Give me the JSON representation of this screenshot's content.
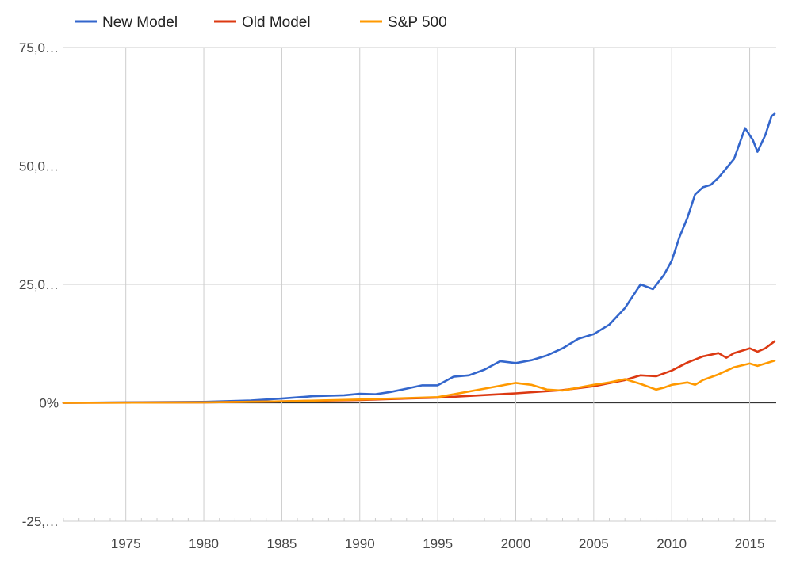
{
  "chart_data": {
    "type": "line",
    "title": "",
    "xlabel": "",
    "ylabel": "",
    "xlim": [
      1971,
      2016.7
    ],
    "ylim": [
      -25000,
      75000
    ],
    "grid": true,
    "legend_position": "top",
    "x_ticks": [
      1975,
      1980,
      1985,
      1990,
      1995,
      2000,
      2005,
      2010,
      2015
    ],
    "x_tick_labels": [
      "1975",
      "1980",
      "1985",
      "1990",
      "1995",
      "2000",
      "2005",
      "2010",
      "2015"
    ],
    "y_ticks": [
      75000,
      50000,
      25000,
      0,
      -25000
    ],
    "y_tick_labels": [
      "75,0…",
      "50,0…",
      "25,0…",
      "0%",
      "-25,…"
    ],
    "series": [
      {
        "name": "New Model",
        "color": "#3366cc",
        "points": [
          [
            1971,
            0
          ],
          [
            1975,
            100
          ],
          [
            1980,
            200
          ],
          [
            1983,
            500
          ],
          [
            1985,
            900
          ],
          [
            1987,
            1400
          ],
          [
            1989,
            1600
          ],
          [
            1990,
            1900
          ],
          [
            1991,
            1800
          ],
          [
            1992,
            2300
          ],
          [
            1993,
            3000
          ],
          [
            1994,
            3700
          ],
          [
            1995,
            3700
          ],
          [
            1996,
            5500
          ],
          [
            1997,
            5800
          ],
          [
            1998,
            7000
          ],
          [
            1999,
            8800
          ],
          [
            2000,
            8400
          ],
          [
            2001,
            9000
          ],
          [
            2002,
            10000
          ],
          [
            2003,
            11500
          ],
          [
            2004,
            13500
          ],
          [
            2005,
            14500
          ],
          [
            2006,
            16500
          ],
          [
            2007,
            20000
          ],
          [
            2008,
            25000
          ],
          [
            2008.8,
            24000
          ],
          [
            2009.5,
            27000
          ],
          [
            2010,
            30000
          ],
          [
            2010.5,
            35000
          ],
          [
            2011,
            39000
          ],
          [
            2011.5,
            44000
          ],
          [
            2012,
            45500
          ],
          [
            2012.5,
            46000
          ],
          [
            2013,
            47500
          ],
          [
            2014,
            51500
          ],
          [
            2014.7,
            58000
          ],
          [
            2015.2,
            55500
          ],
          [
            2015.5,
            53000
          ],
          [
            2016,
            56500
          ],
          [
            2016.4,
            60500
          ],
          [
            2016.6,
            61000
          ]
        ]
      },
      {
        "name": "Old Model",
        "color": "#dc3912",
        "points": [
          [
            1971,
            0
          ],
          [
            1980,
            100
          ],
          [
            1985,
            300
          ],
          [
            1990,
            600
          ],
          [
            1995,
            1100
          ],
          [
            2000,
            2000
          ],
          [
            2003,
            2700
          ],
          [
            2005,
            3500
          ],
          [
            2007,
            4800
          ],
          [
            2008,
            5800
          ],
          [
            2009,
            5600
          ],
          [
            2010,
            6800
          ],
          [
            2011,
            8500
          ],
          [
            2012,
            9800
          ],
          [
            2013,
            10500
          ],
          [
            2013.5,
            9500
          ],
          [
            2014,
            10500
          ],
          [
            2015,
            11500
          ],
          [
            2015.5,
            10800
          ],
          [
            2016,
            11500
          ],
          [
            2016.6,
            13000
          ]
        ]
      },
      {
        "name": "S&P 500",
        "color": "#ff9900",
        "points": [
          [
            1971,
            0
          ],
          [
            1980,
            100
          ],
          [
            1985,
            300
          ],
          [
            1990,
            700
          ],
          [
            1995,
            1200
          ],
          [
            1998,
            3000
          ],
          [
            2000,
            4200
          ],
          [
            2001,
            3800
          ],
          [
            2002,
            2800
          ],
          [
            2003,
            2600
          ],
          [
            2004,
            3200
          ],
          [
            2005,
            3800
          ],
          [
            2006,
            4300
          ],
          [
            2007,
            5000
          ],
          [
            2008,
            4000
          ],
          [
            2009,
            2800
          ],
          [
            2009.5,
            3200
          ],
          [
            2010,
            3800
          ],
          [
            2011,
            4300
          ],
          [
            2011.5,
            3800
          ],
          [
            2012,
            4800
          ],
          [
            2013,
            6000
          ],
          [
            2014,
            7500
          ],
          [
            2015,
            8300
          ],
          [
            2015.5,
            7800
          ],
          [
            2016,
            8300
          ],
          [
            2016.6,
            8900
          ]
        ]
      }
    ]
  }
}
